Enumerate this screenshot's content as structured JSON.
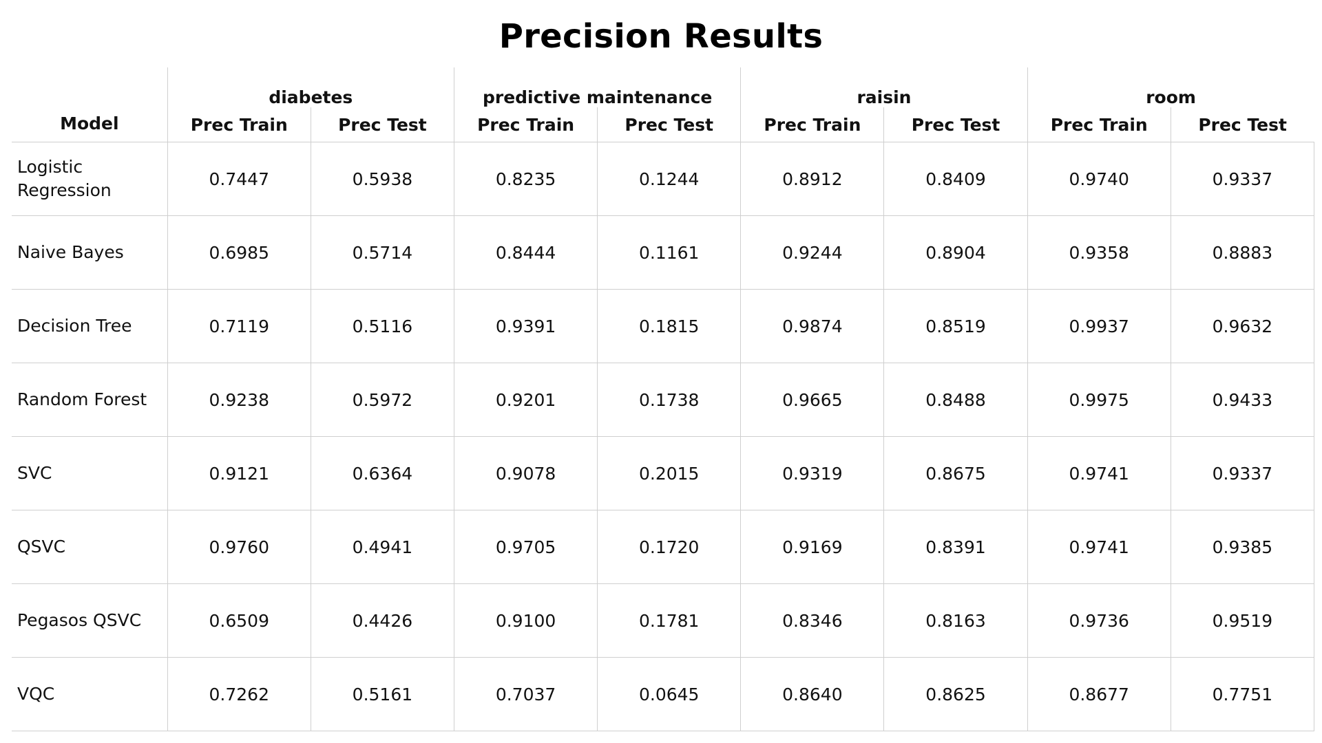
{
  "chart_data": {
    "type": "table",
    "title": "Precision Results",
    "row_header": "Model",
    "datasets": [
      "diabetes",
      "predictive maintenance",
      "raisin",
      "room"
    ],
    "metrics": [
      "Prec Train",
      "Prec Test"
    ],
    "rows": [
      {
        "model": "Logistic Regression",
        "values": [
          "0.7447",
          "0.5938",
          "0.8235",
          "0.1244",
          "0.8912",
          "0.8409",
          "0.9740",
          "0.9337"
        ]
      },
      {
        "model": "Naive Bayes",
        "values": [
          "0.6985",
          "0.5714",
          "0.8444",
          "0.1161",
          "0.9244",
          "0.8904",
          "0.9358",
          "0.8883"
        ]
      },
      {
        "model": "Decision Tree",
        "values": [
          "0.7119",
          "0.5116",
          "0.9391",
          "0.1815",
          "0.9874",
          "0.8519",
          "0.9937",
          "0.9632"
        ]
      },
      {
        "model": "Random Forest",
        "values": [
          "0.9238",
          "0.5972",
          "0.9201",
          "0.1738",
          "0.9665",
          "0.8488",
          "0.9975",
          "0.9433"
        ]
      },
      {
        "model": "SVC",
        "values": [
          "0.9121",
          "0.6364",
          "0.9078",
          "0.2015",
          "0.9319",
          "0.8675",
          "0.9741",
          "0.9337"
        ]
      },
      {
        "model": "QSVC",
        "values": [
          "0.9760",
          "0.4941",
          "0.9705",
          "0.1720",
          "0.9169",
          "0.8391",
          "0.9741",
          "0.9385"
        ]
      },
      {
        "model": "Pegasos QSVC",
        "values": [
          "0.6509",
          "0.4426",
          "0.9100",
          "0.1781",
          "0.8346",
          "0.8163",
          "0.9736",
          "0.9519"
        ]
      },
      {
        "model": "VQC",
        "values": [
          "0.7262",
          "0.5161",
          "0.7037",
          "0.0645",
          "0.8640",
          "0.8625",
          "0.8677",
          "0.7751"
        ]
      }
    ]
  }
}
